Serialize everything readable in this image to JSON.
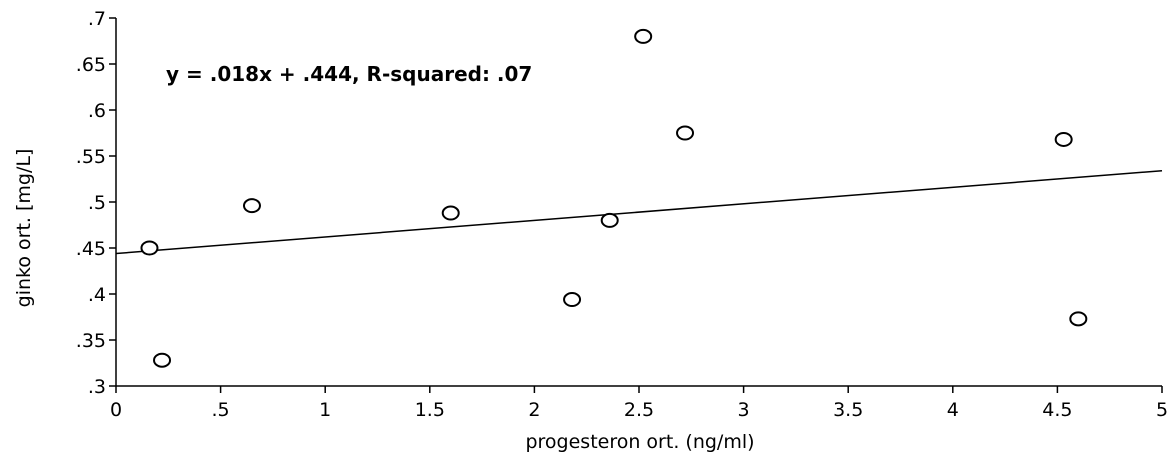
{
  "chart_data": {
    "type": "scatter",
    "xlabel": "progesteron ort. (ng/ml)",
    "ylabel": "ginko ort. [mg/L]",
    "xlim": [
      0,
      5
    ],
    "ylim": [
      0.3,
      0.7
    ],
    "x_ticks": [
      {
        "value": 0,
        "label": "0"
      },
      {
        "value": 0.5,
        "label": ".5"
      },
      {
        "value": 1,
        "label": "1"
      },
      {
        "value": 1.5,
        "label": "1.5"
      },
      {
        "value": 2,
        "label": "2"
      },
      {
        "value": 2.5,
        "label": "2.5"
      },
      {
        "value": 3,
        "label": "3"
      },
      {
        "value": 3.5,
        "label": "3.5"
      },
      {
        "value": 4,
        "label": "4"
      },
      {
        "value": 4.5,
        "label": "4.5"
      },
      {
        "value": 5,
        "label": "5"
      }
    ],
    "y_ticks": [
      {
        "value": 0.3,
        "label": ".3"
      },
      {
        "value": 0.35,
        "label": ".35"
      },
      {
        "value": 0.4,
        "label": ".4"
      },
      {
        "value": 0.45,
        "label": ".45"
      },
      {
        "value": 0.5,
        "label": ".5"
      },
      {
        "value": 0.55,
        "label": ".55"
      },
      {
        "value": 0.6,
        "label": ".6"
      },
      {
        "value": 0.65,
        "label": ".65"
      },
      {
        "value": 0.7,
        "label": ".7"
      }
    ],
    "points": [
      {
        "x": 0.16,
        "y": 0.45
      },
      {
        "x": 0.22,
        "y": 0.328
      },
      {
        "x": 0.65,
        "y": 0.496
      },
      {
        "x": 1.6,
        "y": 0.488
      },
      {
        "x": 2.18,
        "y": 0.394
      },
      {
        "x": 2.36,
        "y": 0.48
      },
      {
        "x": 2.52,
        "y": 0.68
      },
      {
        "x": 2.72,
        "y": 0.575
      },
      {
        "x": 4.53,
        "y": 0.568
      },
      {
        "x": 4.6,
        "y": 0.373
      }
    ],
    "fit_line": {
      "slope": 0.018,
      "intercept": 0.444
    },
    "annotation": "y = .018x + .444, R-squared: .07",
    "grid": false,
    "legend": "none",
    "marker": "open-circle",
    "color": "#000000"
  }
}
